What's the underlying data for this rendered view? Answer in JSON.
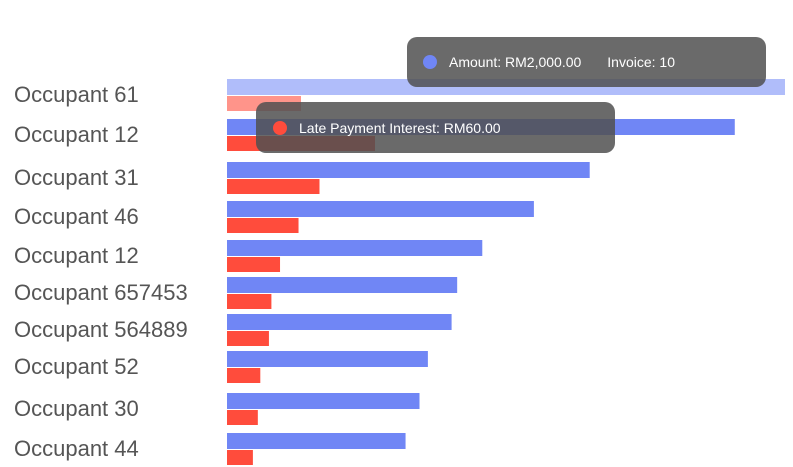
{
  "chart_data": {
    "type": "bar",
    "orientation": "horizontal",
    "categories": [
      "Occupant 61",
      "Occupant 12",
      "Occupant 31",
      "Occupant 46",
      "Occupant 12",
      "Occupant 657453",
      "Occupant 564889",
      "Occupant 52",
      "Occupant 30",
      "Occupant 44"
    ],
    "series": [
      {
        "key": "amount",
        "color": "#7086f5",
        "values": [
          2000,
          1820,
          1300,
          1100,
          915,
          825,
          805,
          720,
          690,
          640
        ]
      },
      {
        "key": "interest",
        "color": "#ff4c3c",
        "values": [
          60,
          120,
          75,
          58,
          43,
          36,
          34,
          27,
          25,
          21
        ]
      }
    ],
    "series_scale": {
      "amount": 2000,
      "interest": 60
    },
    "highlighted_index": 0
  },
  "tooltips": {
    "amount": {
      "color": "#7086f5",
      "text": "Amount: RM2,000.00",
      "extra": "Invoice: 10"
    },
    "interest": {
      "color": "#ff4c3c",
      "text": "Late Payment Interest:  RM60.00"
    }
  }
}
